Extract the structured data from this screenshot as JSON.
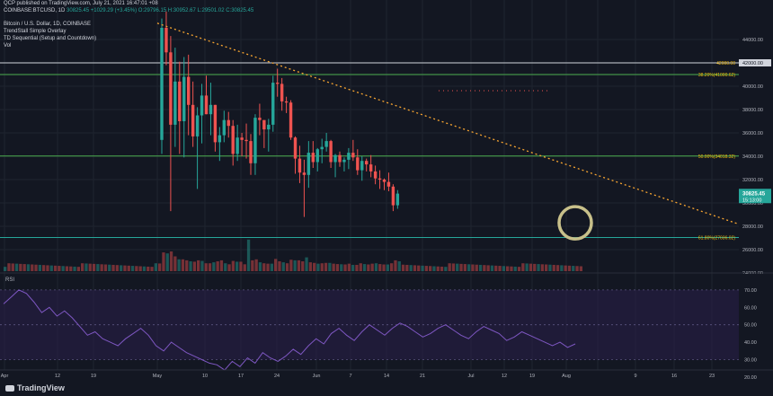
{
  "header": {
    "published": "QCP published on TradingView.com, July 21, 2021 16:47:01 +08",
    "symbol_line": "COINBASE:BTCUSD, 1D",
    "last": "30825.45",
    "change": "+1029.29 (+3.45%)",
    "ohlc": "O:29796.15 H:30952.67 L:29501.02 C:30825.45",
    "title": "Bitcoin / U.S. Dollar, 1D, COINBASE",
    "indicators": [
      "TrendStall Simple Overlay",
      "TD Sequential (Setup and Countdown)",
      "Vol"
    ]
  },
  "footer": {
    "brand": "TradingView"
  },
  "rsi_label": "RSI",
  "chart_data": {
    "type": "candlestick",
    "price_axis": {
      "min": 24000,
      "max": 44000,
      "ticks": [
        24000,
        26000,
        28000,
        30000,
        32000,
        34000,
        36000,
        38000,
        40000,
        44000
      ]
    },
    "current_price": {
      "label": "30825.45",
      "countdown": "15:13:00",
      "value": 30825.45
    },
    "levels": [
      {
        "value": 42000,
        "label": "42000.00",
        "color": "#d1d4dc"
      },
      {
        "value": 41000,
        "label": "38.20%(41000.62)",
        "color": "#4caf50"
      },
      {
        "value": 34018,
        "label": "50.00%(34018.32)",
        "color": "#4caf50"
      },
      {
        "value": 27036,
        "label": "61.80%(27036.02)",
        "color": "#26a69a"
      }
    ],
    "x_ticks": [
      "Apr",
      "12",
      "19",
      "May",
      "10",
      "17",
      "24",
      "Jun",
      "7",
      "14",
      "21",
      "Jul",
      "12",
      "19",
      "Aug",
      "9",
      "16",
      "23"
    ],
    "candles": [
      [
        35400,
        45800,
        34200,
        45000
      ],
      [
        45000,
        46400,
        41800,
        42900
      ],
      [
        42900,
        44300,
        29300,
        36700
      ],
      [
        36700,
        43300,
        34800,
        40400
      ],
      [
        40400,
        42100,
        34200,
        37000
      ],
      [
        37000,
        42500,
        33900,
        40800
      ],
      [
        40800,
        42700,
        35800,
        38400
      ],
      [
        38400,
        40400,
        34800,
        35700
      ],
      [
        35700,
        38200,
        31200,
        37500
      ],
      [
        37500,
        40200,
        35100,
        39200
      ],
      [
        39200,
        40900,
        37600,
        37600
      ],
      [
        37600,
        40300,
        35800,
        38400
      ],
      [
        38400,
        38400,
        34400,
        35200
      ],
      [
        35200,
        36500,
        33600,
        35800
      ],
      [
        35800,
        37900,
        35200,
        37100
      ],
      [
        37100,
        37800,
        35600,
        36600
      ],
      [
        36600,
        37100,
        33200,
        34200
      ],
      [
        34200,
        36700,
        33600,
        35600
      ],
      [
        35600,
        36000,
        34000,
        35400
      ],
      [
        35400,
        36800,
        33800,
        35300
      ],
      [
        35300,
        35900,
        32400,
        33400
      ],
      [
        33400,
        37600,
        32400,
        37300
      ],
      [
        37300,
        38500,
        35800,
        37100
      ],
      [
        37100,
        37100,
        34700,
        36300
      ],
      [
        36300,
        37200,
        34400,
        36700
      ],
      [
        36700,
        40900,
        36100,
        40300
      ],
      [
        40300,
        41500,
        39100,
        40200
      ],
      [
        40200,
        40700,
        37900,
        38700
      ],
      [
        38700,
        39100,
        37700,
        38600
      ],
      [
        38600,
        38800,
        35400,
        35600
      ],
      [
        35600,
        35700,
        32500,
        33800
      ],
      [
        33800,
        34900,
        31700,
        32600
      ],
      [
        32600,
        33700,
        28800,
        32400
      ],
      [
        32400,
        35300,
        31300,
        34300
      ],
      [
        34300,
        35300,
        33000,
        33500
      ],
      [
        33500,
        34700,
        32700,
        34600
      ],
      [
        34600,
        35500,
        33400,
        34800
      ],
      [
        34800,
        36000,
        34400,
        35300
      ],
      [
        35300,
        35400,
        33000,
        33500
      ],
      [
        33500,
        34200,
        32200,
        34100
      ],
      [
        34100,
        34400,
        33100,
        33500
      ],
      [
        33500,
        33900,
        32700,
        33700
      ],
      [
        33700,
        34700,
        32900,
        34300
      ],
      [
        34300,
        35400,
        33600,
        33900
      ],
      [
        33900,
        34600,
        32400,
        32800
      ],
      [
        32800,
        34000,
        31900,
        33600
      ],
      [
        33600,
        33800,
        32700,
        33300
      ],
      [
        33300,
        34100,
        32200,
        32700
      ],
      [
        32700,
        33200,
        31600,
        32100
      ],
      [
        32100,
        32800,
        31200,
        32000
      ],
      [
        32000,
        32100,
        31100,
        31800
      ],
      [
        31800,
        32600,
        31000,
        31400
      ],
      [
        31400,
        31600,
        29300,
        29800
      ],
      [
        29800,
        31100,
        29500,
        30800
      ]
    ],
    "candle_x_start": 180,
    "candle_x_step": 4.95,
    "volume": [
      95,
      90,
      100,
      75,
      60,
      55,
      50,
      48,
      55,
      52,
      40,
      45,
      50,
      55,
      40,
      35,
      52,
      48,
      35,
      40,
      55,
      60,
      45,
      40,
      38,
      62,
      50,
      45,
      40,
      58,
      55,
      50,
      70,
      45,
      42,
      38,
      40,
      42,
      38,
      36,
      35,
      34,
      38,
      32,
      40,
      36,
      34,
      38,
      40,
      36,
      34,
      40,
      55,
      50
    ],
    "trendline": {
      "from": [
        175,
        45400
      ],
      "to": [
        825,
        28100
      ],
      "color": "#f7a531"
    },
    "highlight_circle": {
      "x": 640,
      "price": 28300
    },
    "rsi": {
      "range": [
        20,
        80
      ],
      "ticks": [
        20,
        30,
        40,
        50,
        60,
        70
      ],
      "bands": [
        30,
        50,
        70
      ],
      "values": [
        62,
        66,
        70,
        68,
        63,
        57,
        60,
        55,
        58,
        54,
        49,
        44,
        46,
        42,
        40,
        38,
        42,
        45,
        48,
        44,
        38,
        35,
        40,
        37,
        34,
        32,
        30,
        28,
        27,
        24,
        29,
        26,
        31,
        28,
        34,
        31,
        29,
        32,
        36,
        33,
        38,
        42,
        39,
        45,
        48,
        44,
        41,
        46,
        50,
        47,
        44,
        48,
        51,
        49,
        46,
        43,
        45,
        48,
        50,
        47,
        44,
        42,
        46,
        49,
        47,
        45,
        41,
        43,
        46,
        44,
        42,
        40,
        38,
        40,
        37,
        39
      ]
    }
  }
}
